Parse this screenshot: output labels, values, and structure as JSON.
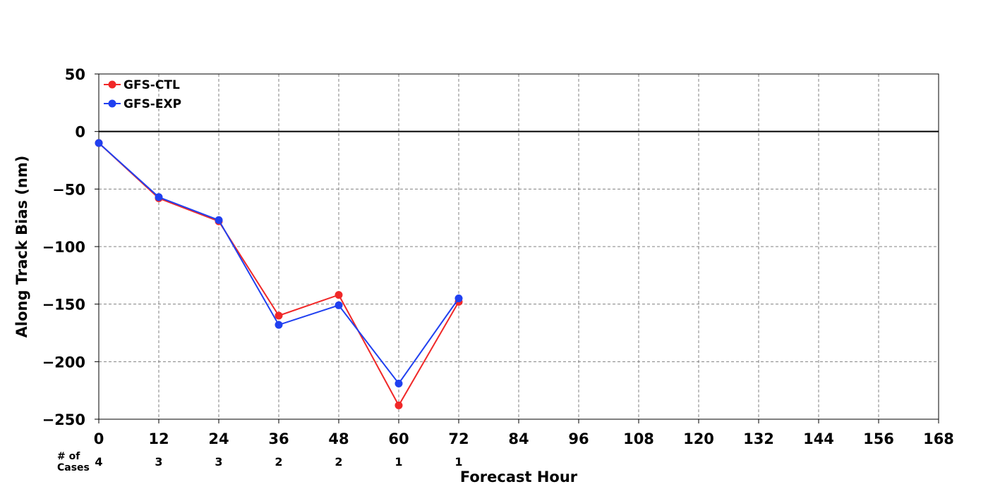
{
  "chart_data": {
    "type": "line",
    "xlabel": "Forecast Hour",
    "ylabel": "Along Track Bias (nm)",
    "xlim": [
      0,
      168
    ],
    "ylim": [
      -250,
      50
    ],
    "x_ticks": [
      0,
      12,
      24,
      36,
      48,
      60,
      72,
      84,
      96,
      108,
      120,
      132,
      144,
      156,
      168
    ],
    "y_ticks": [
      50,
      0,
      -50,
      -100,
      -150,
      -200,
      -250
    ],
    "x_tick_labels": [
      "0",
      "12",
      "24",
      "36",
      "48",
      "60",
      "72",
      "84",
      "96",
      "108",
      "120",
      "132",
      "144",
      "156",
      "168"
    ],
    "y_tick_labels": [
      "50",
      "0",
      "−50",
      "−100",
      "−150",
      "−200",
      "−250"
    ],
    "grid": true,
    "grid_style": "dashed",
    "zero_line": true,
    "legend_position": "top-left",
    "series": [
      {
        "name": "GFS-CTL",
        "color": "#f02828",
        "x": [
          0,
          12,
          24,
          36,
          48,
          60,
          72
        ],
        "y": [
          -10,
          -58,
          -78,
          -160,
          -142,
          -238,
          -148
        ]
      },
      {
        "name": "GFS-EXP",
        "color": "#2040f0",
        "x": [
          0,
          12,
          24,
          36,
          48,
          60,
          72
        ],
        "y": [
          -10,
          -57,
          -77,
          -168,
          -151,
          -219,
          -145
        ]
      }
    ],
    "cases": {
      "label": "# of\nCases",
      "x": [
        0,
        12,
        24,
        36,
        48,
        60,
        72
      ],
      "values": [
        "4",
        "3",
        "3",
        "2",
        "2",
        "1",
        "1"
      ]
    }
  }
}
